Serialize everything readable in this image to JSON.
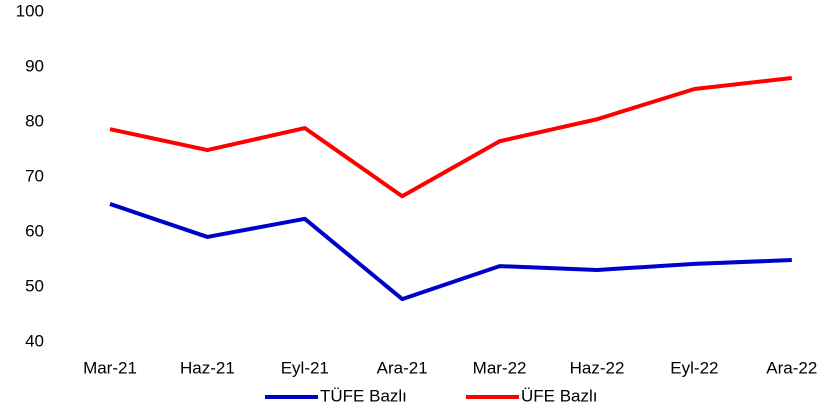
{
  "chart_data": {
    "type": "line",
    "categories": [
      "Mar-21",
      "Haz-21",
      "Eyl-21",
      "Ara-21",
      "Mar-22",
      "Haz-22",
      "Eyl-22",
      "Ara-22"
    ],
    "series": [
      {
        "name": "TÜFE Bazlı",
        "color": "#0000c8",
        "values": [
          65.1,
          59.1,
          62.4,
          47.8,
          53.8,
          53.1,
          54.2,
          54.9
        ]
      },
      {
        "name": "ÜFE Bazlı",
        "color": "#ff0000",
        "values": [
          78.7,
          74.9,
          78.9,
          66.5,
          76.5,
          80.5,
          86,
          88
        ]
      }
    ],
    "ylim": [
      40,
      100
    ],
    "yticks": [
      40,
      50,
      60,
      70,
      80,
      90,
      100
    ],
    "grid": false,
    "legend": "bottom"
  }
}
